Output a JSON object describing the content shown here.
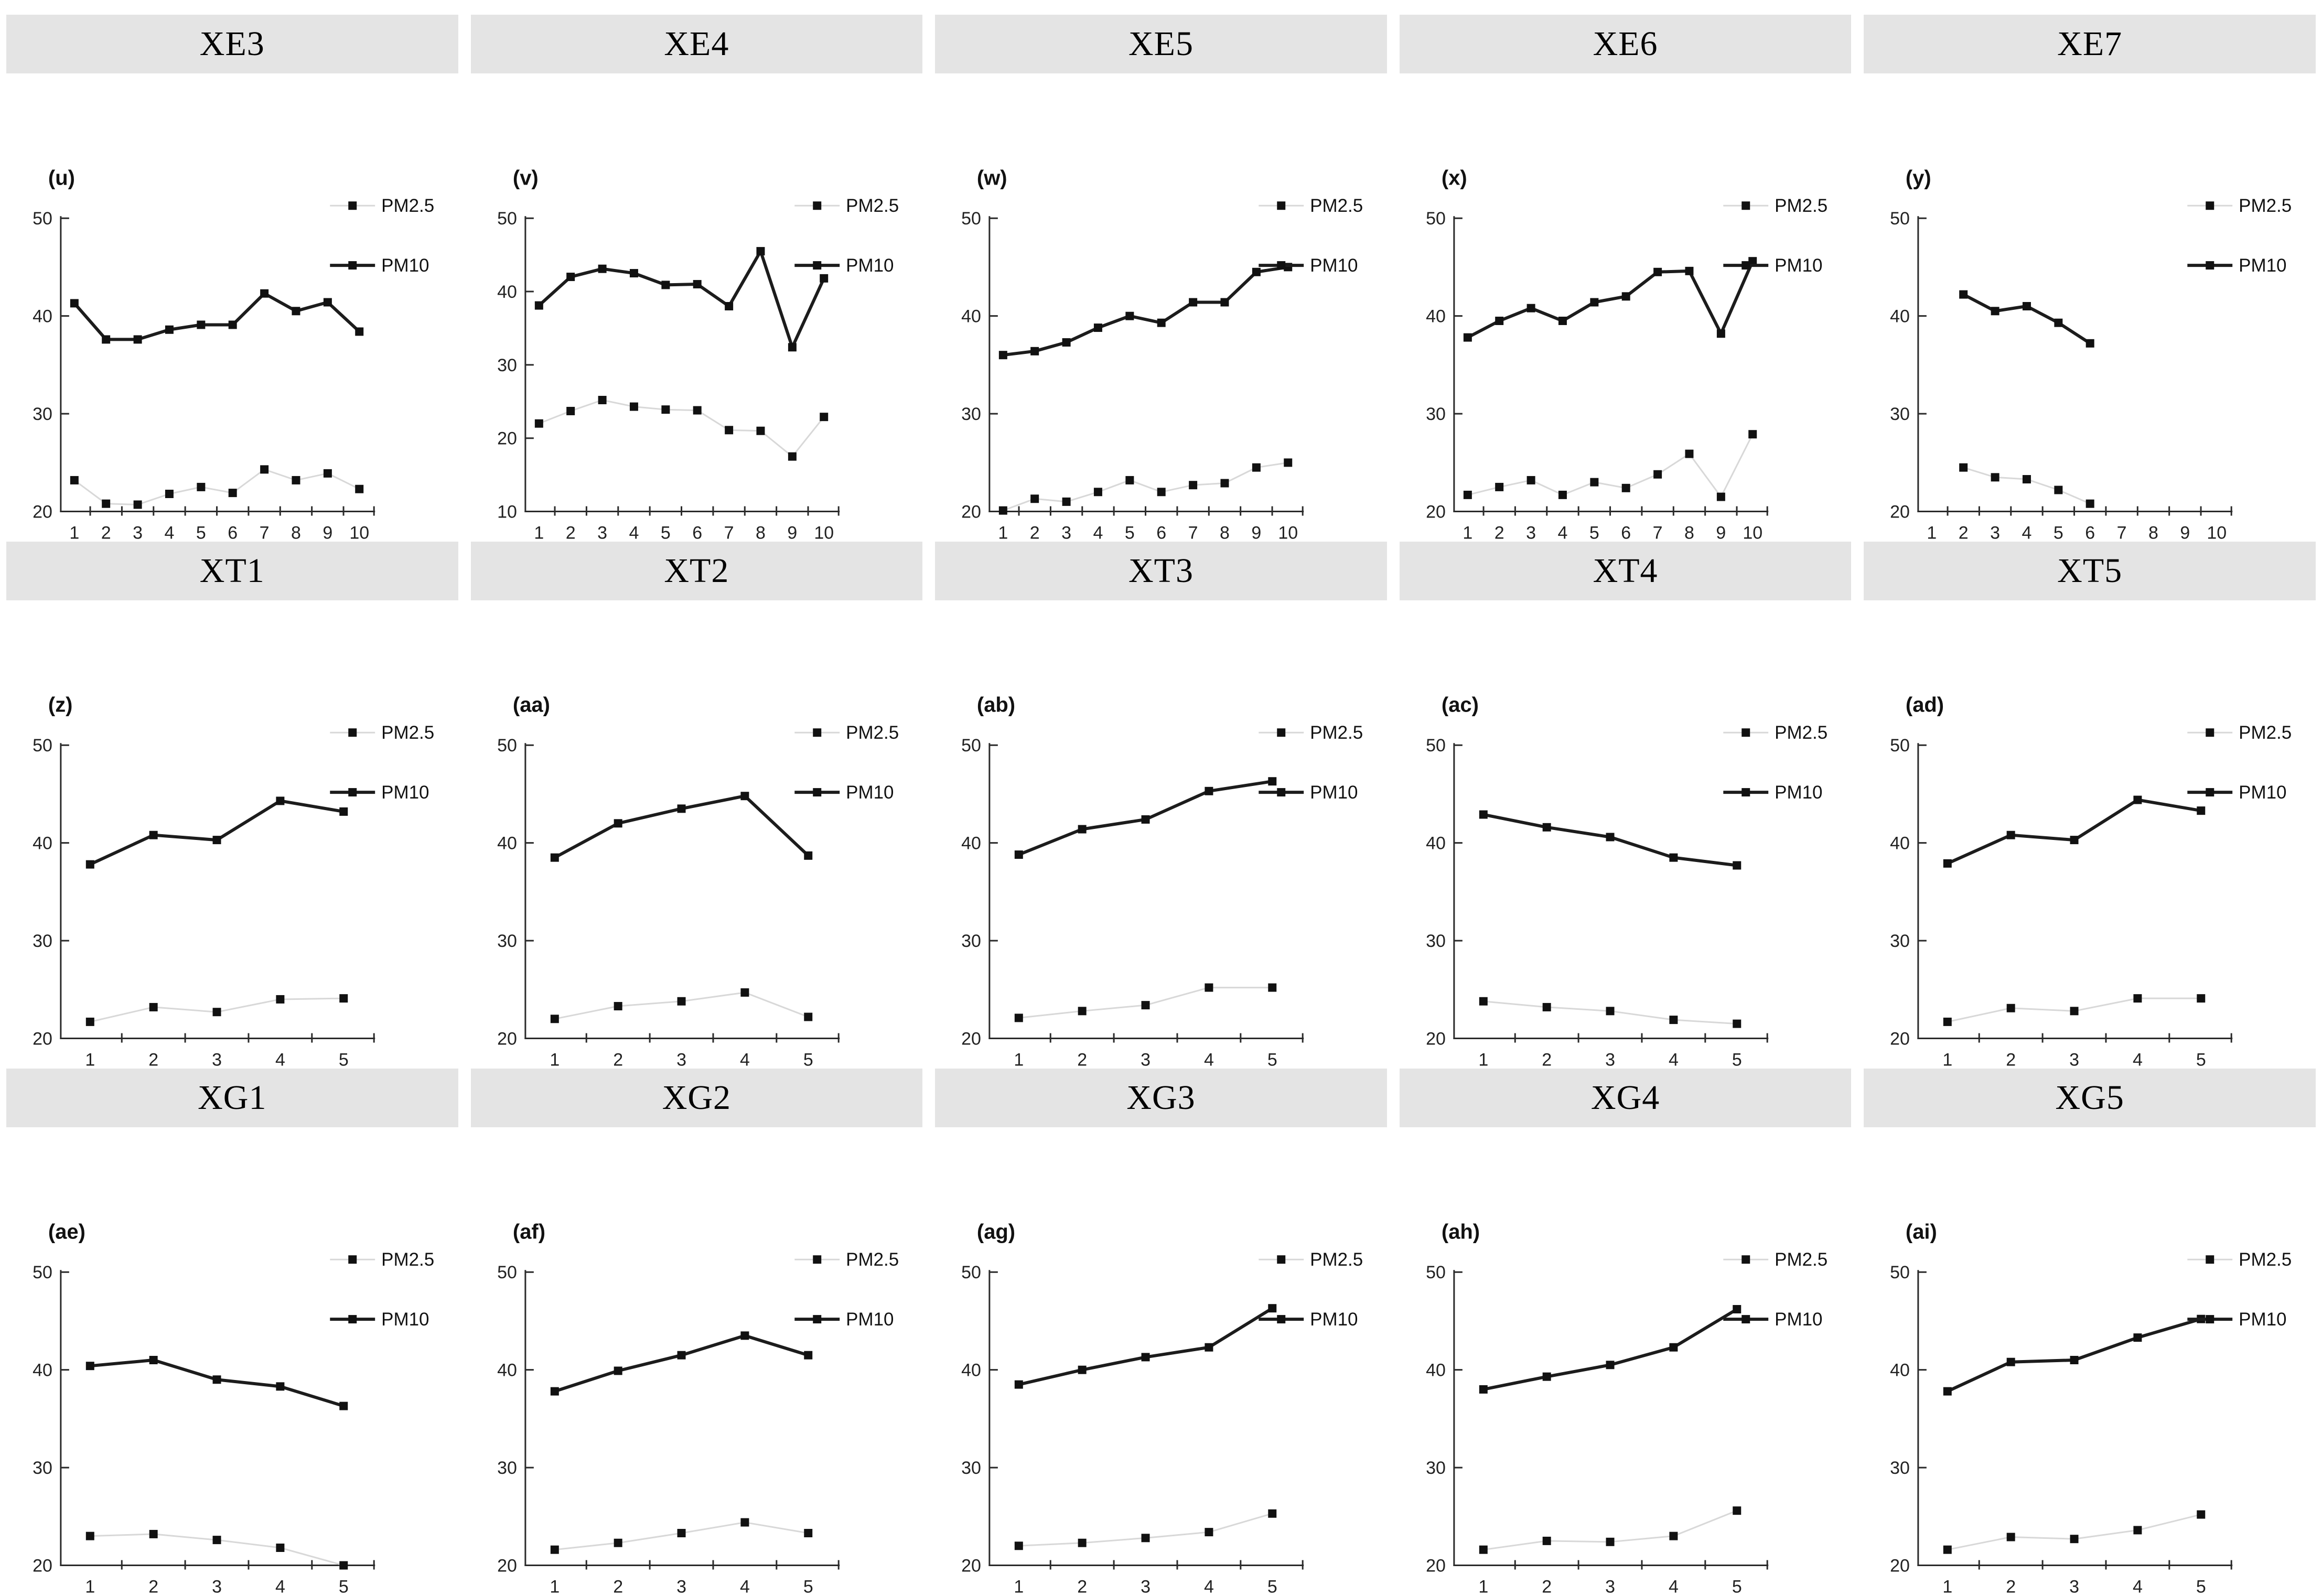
{
  "figure": {
    "background": "#ffffff",
    "header_bg": "#e4e4e4",
    "header_text_color": "#000000",
    "axis_color": "#2a2a2a",
    "pm10_color": "#1c1c1c",
    "pm25_line_color": "#d8d8d8",
    "marker_color": "#111111",
    "legend_labels": [
      "PM2.5",
      "PM10"
    ]
  },
  "chart_data": [
    {
      "panel": "XE3",
      "sublabel": "(u)",
      "type": "line",
      "x": [
        1,
        2,
        3,
        4,
        5,
        6,
        7,
        8,
        9,
        10
      ],
      "xticks": [
        1,
        2,
        3,
        4,
        5,
        6,
        7,
        8,
        9,
        10
      ],
      "ylim": [
        20,
        50
      ],
      "yticks": [
        20,
        30,
        40,
        50
      ],
      "grid": false,
      "legend_position": "right",
      "series": [
        {
          "name": "PM2.5",
          "values": [
            23.2,
            20.8,
            20.7,
            21.8,
            22.5,
            21.9,
            24.3,
            23.2,
            23.9,
            22.3
          ]
        },
        {
          "name": "PM10",
          "values": [
            41.3,
            37.6,
            37.6,
            38.6,
            39.1,
            39.1,
            42.3,
            40.5,
            41.4,
            38.4
          ]
        }
      ]
    },
    {
      "panel": "XE4",
      "sublabel": "(v)",
      "type": "line",
      "x": [
        1,
        2,
        3,
        4,
        5,
        6,
        7,
        8,
        9,
        10
      ],
      "xticks": [
        1,
        2,
        3,
        4,
        5,
        6,
        7,
        8,
        9,
        10
      ],
      "ylim": [
        10,
        50
      ],
      "yticks": [
        10,
        20,
        30,
        40,
        50
      ],
      "grid": false,
      "legend_position": "right",
      "series": [
        {
          "name": "PM2.5",
          "values": [
            22.0,
            23.7,
            25.2,
            24.3,
            23.9,
            23.8,
            21.1,
            21.0,
            17.5,
            22.9
          ]
        },
        {
          "name": "PM10",
          "values": [
            38.1,
            42.0,
            43.1,
            42.5,
            40.9,
            41.0,
            38.0,
            45.5,
            32.4,
            41.8
          ]
        }
      ]
    },
    {
      "panel": "XE5",
      "sublabel": "(w)",
      "type": "line",
      "x": [
        1,
        2,
        3,
        4,
        5,
        6,
        7,
        8,
        9,
        10
      ],
      "xticks": [
        1,
        2,
        3,
        4,
        5,
        6,
        7,
        8,
        9,
        10
      ],
      "ylim": [
        20,
        50
      ],
      "yticks": [
        20,
        30,
        40,
        50
      ],
      "grid": false,
      "legend_position": "right",
      "series": [
        {
          "name": "PM2.5",
          "values": [
            20.1,
            21.3,
            21.0,
            22.0,
            23.2,
            22.0,
            22.7,
            22.9,
            24.5,
            25.0
          ]
        },
        {
          "name": "PM10",
          "values": [
            36.0,
            36.4,
            37.3,
            38.8,
            40.0,
            39.3,
            41.4,
            41.4,
            44.5,
            45.0
          ]
        }
      ]
    },
    {
      "panel": "XE6",
      "sublabel": "(x)",
      "type": "line",
      "x": [
        1,
        2,
        3,
        4,
        5,
        6,
        7,
        8,
        9,
        10
      ],
      "xticks": [
        1,
        2,
        3,
        4,
        5,
        6,
        7,
        8,
        9,
        10
      ],
      "ylim": [
        20,
        50
      ],
      "yticks": [
        20,
        30,
        40,
        50
      ],
      "grid": false,
      "legend_position": "right",
      "series": [
        {
          "name": "PM2.5",
          "values": [
            21.7,
            22.5,
            23.2,
            21.7,
            23.0,
            22.4,
            23.8,
            25.9,
            21.5,
            27.9
          ]
        },
        {
          "name": "PM10",
          "values": [
            37.8,
            39.5,
            40.8,
            39.5,
            41.4,
            42.0,
            44.5,
            44.6,
            38.2,
            45.6
          ]
        }
      ]
    },
    {
      "panel": "XE7",
      "sublabel": "(y)",
      "type": "line",
      "x": [
        2,
        3,
        4,
        5,
        6
      ],
      "xticks": [
        1,
        2,
        3,
        4,
        5,
        6,
        7,
        8,
        9,
        10
      ],
      "ylim": [
        20,
        50
      ],
      "yticks": [
        20,
        30,
        40,
        50
      ],
      "grid": false,
      "legend_position": "right",
      "series": [
        {
          "name": "PM2.5",
          "values": [
            24.5,
            23.5,
            23.3,
            22.2,
            20.8
          ]
        },
        {
          "name": "PM10",
          "values": [
            42.2,
            40.5,
            41.0,
            39.3,
            37.2
          ]
        }
      ]
    },
    {
      "panel": "XT1",
      "sublabel": "(z)",
      "type": "line",
      "x": [
        1,
        2,
        3,
        4,
        5
      ],
      "xticks": [
        1,
        2,
        3,
        4,
        5
      ],
      "ylim": [
        20,
        50
      ],
      "yticks": [
        20,
        30,
        40,
        50
      ],
      "grid": false,
      "legend_position": "right",
      "series": [
        {
          "name": "PM2.5",
          "values": [
            21.7,
            23.2,
            22.7,
            24.0,
            24.1
          ]
        },
        {
          "name": "PM10",
          "values": [
            37.8,
            40.8,
            40.3,
            44.3,
            43.2
          ]
        }
      ]
    },
    {
      "panel": "XT2",
      "sublabel": "(aa)",
      "type": "line",
      "x": [
        1,
        2,
        3,
        4,
        5
      ],
      "xticks": [
        1,
        2,
        3,
        4,
        5
      ],
      "ylim": [
        20,
        50
      ],
      "yticks": [
        20,
        30,
        40,
        50
      ],
      "grid": false,
      "legend_position": "right",
      "series": [
        {
          "name": "PM2.5",
          "values": [
            22.0,
            23.3,
            23.8,
            24.7,
            22.2
          ]
        },
        {
          "name": "PM10",
          "values": [
            38.5,
            42.0,
            43.5,
            44.8,
            38.7
          ]
        }
      ]
    },
    {
      "panel": "XT3",
      "sublabel": "(ab)",
      "type": "line",
      "x": [
        1,
        2,
        3,
        4,
        5
      ],
      "xticks": [
        1,
        2,
        3,
        4,
        5
      ],
      "ylim": [
        20,
        50
      ],
      "yticks": [
        20,
        30,
        40,
        50
      ],
      "grid": false,
      "legend_position": "right",
      "series": [
        {
          "name": "PM2.5",
          "values": [
            22.1,
            22.8,
            23.4,
            25.2,
            25.2
          ]
        },
        {
          "name": "PM10",
          "values": [
            38.8,
            41.4,
            42.4,
            45.3,
            46.3
          ]
        }
      ]
    },
    {
      "panel": "XT4",
      "sublabel": "(ac)",
      "type": "line",
      "x": [
        1,
        2,
        3,
        4,
        5
      ],
      "xticks": [
        1,
        2,
        3,
        4,
        5
      ],
      "ylim": [
        20,
        50
      ],
      "yticks": [
        20,
        30,
        40,
        50
      ],
      "grid": false,
      "legend_position": "right",
      "series": [
        {
          "name": "PM2.5",
          "values": [
            23.8,
            23.2,
            22.8,
            21.9,
            21.5
          ]
        },
        {
          "name": "PM10",
          "values": [
            42.9,
            41.6,
            40.6,
            38.5,
            37.7
          ]
        }
      ]
    },
    {
      "panel": "XT5",
      "sublabel": "(ad)",
      "type": "line",
      "x": [
        1,
        2,
        3,
        4,
        5
      ],
      "xticks": [
        1,
        2,
        3,
        4,
        5
      ],
      "ylim": [
        20,
        50
      ],
      "yticks": [
        20,
        30,
        40,
        50
      ],
      "grid": false,
      "legend_position": "right",
      "series": [
        {
          "name": "PM2.5",
          "values": [
            21.7,
            23.1,
            22.8,
            24.1,
            24.1
          ]
        },
        {
          "name": "PM10",
          "values": [
            37.9,
            40.8,
            40.3,
            44.4,
            43.3
          ]
        }
      ]
    },
    {
      "panel": "XG1",
      "sublabel": "(ae)",
      "type": "line",
      "x": [
        1,
        2,
        3,
        4,
        5
      ],
      "xticks": [
        1,
        2,
        3,
        4,
        5
      ],
      "ylim": [
        20,
        50
      ],
      "yticks": [
        20,
        30,
        40,
        50
      ],
      "grid": false,
      "legend_position": "right",
      "series": [
        {
          "name": "PM2.5",
          "values": [
            23.0,
            23.2,
            22.6,
            21.8,
            20.0
          ]
        },
        {
          "name": "PM10",
          "values": [
            40.4,
            41.0,
            39.0,
            38.3,
            36.3
          ]
        }
      ]
    },
    {
      "panel": "XG2",
      "sublabel": "(af)",
      "type": "line",
      "x": [
        1,
        2,
        3,
        4,
        5
      ],
      "xticks": [
        1,
        2,
        3,
        4,
        5
      ],
      "ylim": [
        20,
        50
      ],
      "yticks": [
        20,
        30,
        40,
        50
      ],
      "grid": false,
      "legend_position": "right",
      "series": [
        {
          "name": "PM2.5",
          "values": [
            21.6,
            22.3,
            23.3,
            24.4,
            23.3
          ]
        },
        {
          "name": "PM10",
          "values": [
            37.8,
            39.9,
            41.5,
            43.5,
            41.5
          ]
        }
      ]
    },
    {
      "panel": "XG3",
      "sublabel": "(ag)",
      "type": "line",
      "x": [
        1,
        2,
        3,
        4,
        5
      ],
      "xticks": [
        1,
        2,
        3,
        4,
        5
      ],
      "ylim": [
        20,
        50
      ],
      "yticks": [
        20,
        30,
        40,
        50
      ],
      "grid": false,
      "legend_position": "right",
      "series": [
        {
          "name": "PM2.5",
          "values": [
            22.0,
            22.3,
            22.8,
            23.4,
            25.3
          ]
        },
        {
          "name": "PM10",
          "values": [
            38.5,
            40.0,
            41.3,
            42.3,
            46.3
          ]
        }
      ]
    },
    {
      "panel": "XG4",
      "sublabel": "(ah)",
      "type": "line",
      "x": [
        1,
        2,
        3,
        4,
        5
      ],
      "xticks": [
        1,
        2,
        3,
        4,
        5
      ],
      "ylim": [
        20,
        50
      ],
      "yticks": [
        20,
        30,
        40,
        50
      ],
      "grid": false,
      "legend_position": "right",
      "series": [
        {
          "name": "PM2.5",
          "values": [
            21.6,
            22.5,
            22.4,
            23.0,
            25.6
          ]
        },
        {
          "name": "PM10",
          "values": [
            38.0,
            39.3,
            40.5,
            42.3,
            46.2
          ]
        }
      ]
    },
    {
      "panel": "XG5",
      "sublabel": "(ai)",
      "type": "line",
      "x": [
        1,
        2,
        3,
        4,
        5
      ],
      "xticks": [
        1,
        2,
        3,
        4,
        5
      ],
      "ylim": [
        20,
        50
      ],
      "yticks": [
        20,
        30,
        40,
        50
      ],
      "grid": false,
      "legend_position": "right",
      "series": [
        {
          "name": "PM2.5",
          "values": [
            21.6,
            22.9,
            22.7,
            23.6,
            25.2
          ]
        },
        {
          "name": "PM10",
          "values": [
            37.8,
            40.8,
            41.0,
            43.3,
            45.2
          ]
        }
      ]
    }
  ]
}
